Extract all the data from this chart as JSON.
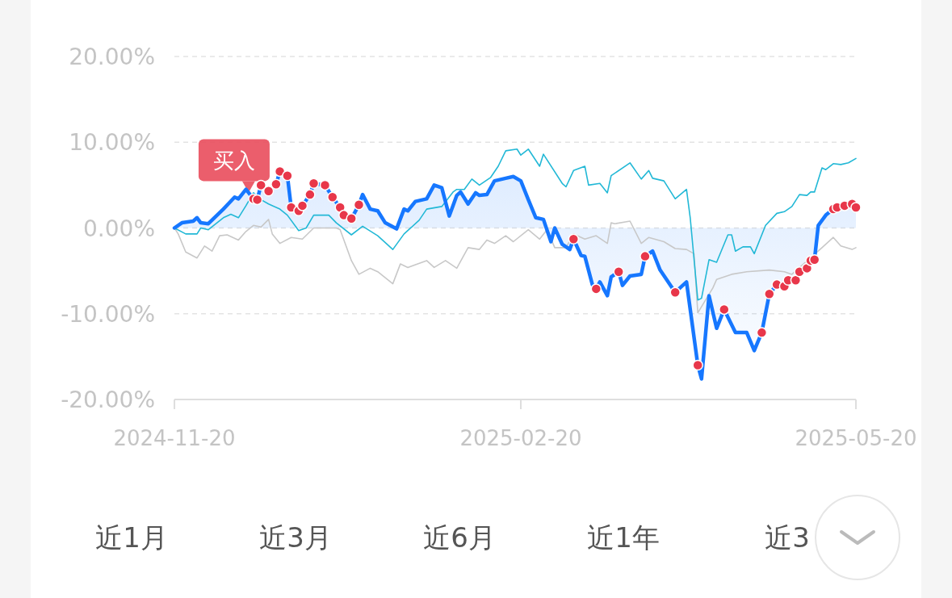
{
  "chart_data": {
    "type": "line",
    "ylim": [
      -20,
      20
    ],
    "yticks": [
      {
        "value": 20,
        "label": "20.00%"
      },
      {
        "value": 10,
        "label": "10.00%"
      },
      {
        "value": 0,
        "label": "0.00%"
      },
      {
        "value": -10,
        "label": "-10.00%"
      },
      {
        "value": -20,
        "label": "-20.00%"
      }
    ],
    "xlim": [
      "2024-11-20",
      "2025-05-20"
    ],
    "xticks": [
      "2024-11-20",
      "2025-02-20",
      "2025-05-20"
    ],
    "grid": "y",
    "series": [
      {
        "color": "#c8c8c8",
        "x": [
          "2024-11-20",
          "2024-11-21",
          "2024-11-23",
          "2024-11-26",
          "2024-11-28",
          "2024-11-30",
          "2024-12-02",
          "2024-12-04",
          "2024-12-07",
          "2024-12-09",
          "2024-12-11",
          "2024-12-13",
          "2024-12-15",
          "2024-12-16",
          "2024-12-18",
          "2024-12-21",
          "2024-12-24",
          "2024-12-27",
          "2025-01-02",
          "2025-01-03",
          "2025-01-06",
          "2025-01-08",
          "2025-01-11",
          "2025-01-13",
          "2025-01-17",
          "2025-01-19",
          "2025-01-21",
          "2025-01-26",
          "2025-01-28",
          "2025-01-31",
          "2025-02-03",
          "2025-02-06",
          "2025-02-09",
          "2025-02-11",
          "2025-02-13",
          "2025-02-16",
          "2025-02-18",
          "2025-02-22",
          "2025-02-25",
          "2025-02-27",
          "2025-03-01",
          "2025-03-04",
          "2025-03-06",
          "2025-03-09",
          "2025-03-12",
          "2025-03-15",
          "2025-03-16",
          "2025-03-17",
          "2025-03-21",
          "2025-03-24",
          "2025-03-26",
          "2025-03-30",
          "2025-04-02",
          "2025-04-05",
          "2025-04-07",
          "2025-04-08",
          "2025-04-12",
          "2025-04-13",
          "2025-04-17",
          "2025-04-21",
          "2025-04-27",
          "2025-05-01",
          "2025-05-03",
          "2025-05-11",
          "2025-05-14",
          "2025-05-16",
          "2025-05-19",
          "2025-05-20"
        ],
        "values": [
          0.0,
          -0.7,
          -2.8,
          -3.5,
          -2.1,
          -2.7,
          -0.9,
          -0.8,
          -1.4,
          -0.4,
          0.3,
          0.1,
          1.0,
          -0.7,
          -1.8,
          -1.1,
          -1.3,
          0.0,
          0.0,
          -0.2,
          -3.8,
          -5.4,
          -4.7,
          -5.1,
          -6.5,
          -4.2,
          -4.6,
          -3.8,
          -4.6,
          -3.8,
          -4.7,
          -2.3,
          -2.5,
          -1.4,
          -1.8,
          -0.9,
          -1.6,
          -0.2,
          -1.3,
          -0.2,
          -2.3,
          -2.3,
          -0.7,
          -1.3,
          -0.9,
          -1.8,
          0.6,
          0.5,
          0.8,
          -1.8,
          -1.1,
          -1.6,
          -2.4,
          -2.5,
          -3.0,
          -9.9,
          -7.0,
          -6.0,
          -5.4,
          -5.1,
          -4.9,
          -5.1,
          -5.4,
          -2.3,
          -1.1,
          -2.1,
          -2.5,
          -2.3
        ]
      },
      {
        "color": "#22b8d6",
        "x": [
          "2024-11-20",
          "2024-11-23",
          "2024-11-26",
          "2024-11-27",
          "2024-11-29",
          "2024-12-03",
          "2024-12-05",
          "2024-12-07",
          "2024-12-09",
          "2024-12-11",
          "2024-12-13",
          "2024-12-15",
          "2024-12-18",
          "2024-12-20",
          "2024-12-23",
          "2024-12-25",
          "2024-12-27",
          "2024-12-31",
          "2025-01-02",
          "2025-01-06",
          "2025-01-09",
          "2025-01-13",
          "2025-01-17",
          "2025-01-20",
          "2025-01-24",
          "2025-01-26",
          "2025-01-30",
          "2025-02-02",
          "2025-02-03",
          "2025-02-05",
          "2025-02-07",
          "2025-02-09",
          "2025-02-12",
          "2025-02-14",
          "2025-02-16",
          "2025-02-19",
          "2025-02-20",
          "2025-02-22",
          "2025-02-25",
          "2025-02-26",
          "2025-03-03",
          "2025-03-04",
          "2025-03-06",
          "2025-03-09",
          "2025-03-10",
          "2025-03-13",
          "2025-03-15",
          "2025-03-16",
          "2025-03-21",
          "2025-03-24",
          "2025-03-26",
          "2025-03-27",
          "2025-03-30",
          "2025-04-02",
          "2025-04-05",
          "2025-04-06",
          "2025-04-08",
          "2025-04-09",
          "2025-04-11",
          "2025-04-13",
          "2025-04-16",
          "2025-04-17",
          "2025-04-18",
          "2025-04-20",
          "2025-04-22",
          "2025-04-23",
          "2025-04-26",
          "2025-04-29",
          "2025-05-01",
          "2025-05-03",
          "2025-05-05",
          "2025-05-07",
          "2025-05-08",
          "2025-05-09",
          "2025-05-11",
          "2025-05-12",
          "2025-05-14",
          "2025-05-16",
          "2025-05-18",
          "2025-05-20"
        ],
        "values": [
          0.0,
          -0.7,
          -0.7,
          0.0,
          -0.2,
          1.2,
          1.6,
          1.2,
          2.6,
          4.1,
          3.3,
          2.8,
          2.2,
          1.5,
          -0.3,
          0.0,
          1.5,
          1.5,
          0.6,
          -0.8,
          0.2,
          -0.9,
          -2.5,
          -0.7,
          0.9,
          2.2,
          2.5,
          4.2,
          4.5,
          4.5,
          5.7,
          5.0,
          5.9,
          7.2,
          9.0,
          9.2,
          8.5,
          9.2,
          7.2,
          8.6,
          5.2,
          4.8,
          6.7,
          7.2,
          5.0,
          5.2,
          4.1,
          6.1,
          7.6,
          5.7,
          6.7,
          5.8,
          5.5,
          3.4,
          4.5,
          1.2,
          -8.4,
          -8.2,
          -3.7,
          -4.0,
          -0.8,
          -0.8,
          -2.7,
          -2.2,
          -2.2,
          -3.0,
          0.3,
          1.7,
          1.9,
          2.5,
          3.9,
          3.8,
          4.2,
          4.2,
          7.0,
          6.8,
          7.5,
          7.4,
          7.6,
          8.1
        ]
      },
      {
        "type": "area",
        "color": "#1677ff",
        "x": [
          "2024-11-20",
          "2024-11-22",
          "2024-11-25",
          "2024-11-26",
          "2024-11-27",
          "2024-11-29",
          "2024-12-03",
          "2024-12-06",
          "2024-12-07",
          "2024-12-09",
          "2024-12-11",
          "2024-12-12",
          "2024-12-13",
          "2024-12-15",
          "2024-12-17",
          "2024-12-18",
          "2024-12-20",
          "2024-12-21",
          "2024-12-23",
          "2024-12-24",
          "2024-12-26",
          "2024-12-27",
          "2024-12-30",
          "2025-01-01",
          "2025-01-03",
          "2025-01-04",
          "2025-01-06",
          "2025-01-08",
          "2025-01-09",
          "2025-01-11",
          "2025-01-13",
          "2025-01-15",
          "2025-01-18",
          "2025-01-20",
          "2025-01-21",
          "2025-01-23",
          "2025-01-26",
          "2025-01-28",
          "2025-01-30",
          "2025-02-01",
          "2025-02-03",
          "2025-02-04",
          "2025-02-06",
          "2025-02-08",
          "2025-02-09",
          "2025-02-11",
          "2025-02-13",
          "2025-02-16",
          "2025-02-18",
          "2025-02-20",
          "2025-02-22",
          "2025-02-24",
          "2025-02-26",
          "2025-02-28",
          "2025-03-01",
          "2025-03-03",
          "2025-03-05",
          "2025-03-06",
          "2025-03-08",
          "2025-03-09",
          "2025-03-11",
          "2025-03-12",
          "2025-03-13",
          "2025-03-15",
          "2025-03-16",
          "2025-03-18",
          "2025-03-19",
          "2025-03-21",
          "2025-03-24",
          "2025-03-25",
          "2025-03-27",
          "2025-03-29",
          "2025-04-02",
          "2025-04-05",
          "2025-04-08",
          "2025-04-09",
          "2025-04-11",
          "2025-04-13",
          "2025-04-15",
          "2025-04-18",
          "2025-04-21",
          "2025-04-23",
          "2025-04-25",
          "2025-04-27",
          "2025-04-29",
          "2025-05-01",
          "2025-05-02",
          "2025-05-04",
          "2025-05-05",
          "2025-05-07",
          "2025-05-08",
          "2025-05-09",
          "2025-05-10",
          "2025-05-12",
          "2025-05-14",
          "2025-05-15",
          "2025-05-17",
          "2025-05-19",
          "2025-05-20"
        ],
        "values": [
          0.0,
          0.6,
          0.8,
          1.2,
          0.6,
          0.5,
          2.2,
          3.6,
          3.4,
          4.5,
          3.4,
          3.3,
          5.0,
          4.3,
          5.1,
          6.6,
          6.1,
          2.4,
          2.0,
          2.6,
          3.9,
          5.2,
          5.0,
          3.6,
          2.4,
          1.5,
          1.1,
          2.7,
          3.9,
          2.2,
          2.0,
          0.6,
          -0.1,
          2.2,
          2.0,
          3.1,
          3.4,
          5.0,
          4.7,
          1.4,
          3.8,
          4.2,
          2.8,
          4.1,
          3.8,
          3.9,
          5.5,
          5.8,
          6.0,
          5.5,
          3.3,
          1.2,
          1.0,
          -1.6,
          0.0,
          -1.9,
          -2.5,
          -1.3,
          -3.2,
          -3.3,
          -6.6,
          -7.1,
          -6.3,
          -7.9,
          -5.7,
          -5.1,
          -6.7,
          -5.6,
          -5.4,
          -3.3,
          -2.7,
          -4.9,
          -7.5,
          -6.3,
          -16.0,
          -17.6,
          -7.9,
          -11.7,
          -9.5,
          -12.2,
          -12.2,
          -14.3,
          -12.2,
          -7.7,
          -6.6,
          -6.8,
          -6.1,
          -6.1,
          -5.1,
          -4.7,
          -3.8,
          -3.7,
          0.3,
          1.5,
          2.2,
          2.4,
          2.6,
          2.8,
          2.4
        ]
      },
      {
        "type": "scatter",
        "marker": "circle",
        "color": "#e8374a",
        "x": [
          "2024-12-11",
          "2024-12-12",
          "2024-12-13",
          "2024-12-15",
          "2024-12-17",
          "2024-12-18",
          "2024-12-20",
          "2024-12-21",
          "2024-12-23",
          "2024-12-24",
          "2024-12-26",
          "2024-12-27",
          "2024-12-30",
          "2025-01-01",
          "2025-01-03",
          "2025-01-04",
          "2025-01-06",
          "2025-01-08",
          "2025-03-06",
          "2025-03-12",
          "2025-03-18",
          "2025-03-25",
          "2025-04-02",
          "2025-04-08",
          "2025-04-15",
          "2025-04-25",
          "2025-04-27",
          "2025-04-29",
          "2025-05-01",
          "2025-05-02",
          "2025-05-04",
          "2025-05-05",
          "2025-05-07",
          "2025-05-08",
          "2025-05-09",
          "2025-05-14",
          "2025-05-15",
          "2025-05-17",
          "2025-05-19",
          "2025-05-20"
        ],
        "values": [
          3.4,
          3.3,
          5.0,
          4.3,
          5.1,
          6.6,
          6.1,
          2.4,
          2.0,
          2.6,
          3.9,
          5.2,
          5.0,
          3.6,
          2.4,
          1.5,
          1.1,
          2.7,
          -1.3,
          -7.1,
          -5.1,
          -3.3,
          -7.5,
          -16.0,
          -9.5,
          -12.2,
          -7.7,
          -6.6,
          -6.8,
          -6.1,
          -6.1,
          -5.1,
          -4.7,
          -3.8,
          -3.7,
          2.2,
          2.4,
          2.6,
          2.8,
          2.4
        ]
      }
    ],
    "annotations": [
      {
        "text": "买入",
        "x": "2024-12-11",
        "y": 3.4
      },
      "近1月",
      "近3月",
      "近6月",
      "近1年",
      "近3"
    ]
  }
}
